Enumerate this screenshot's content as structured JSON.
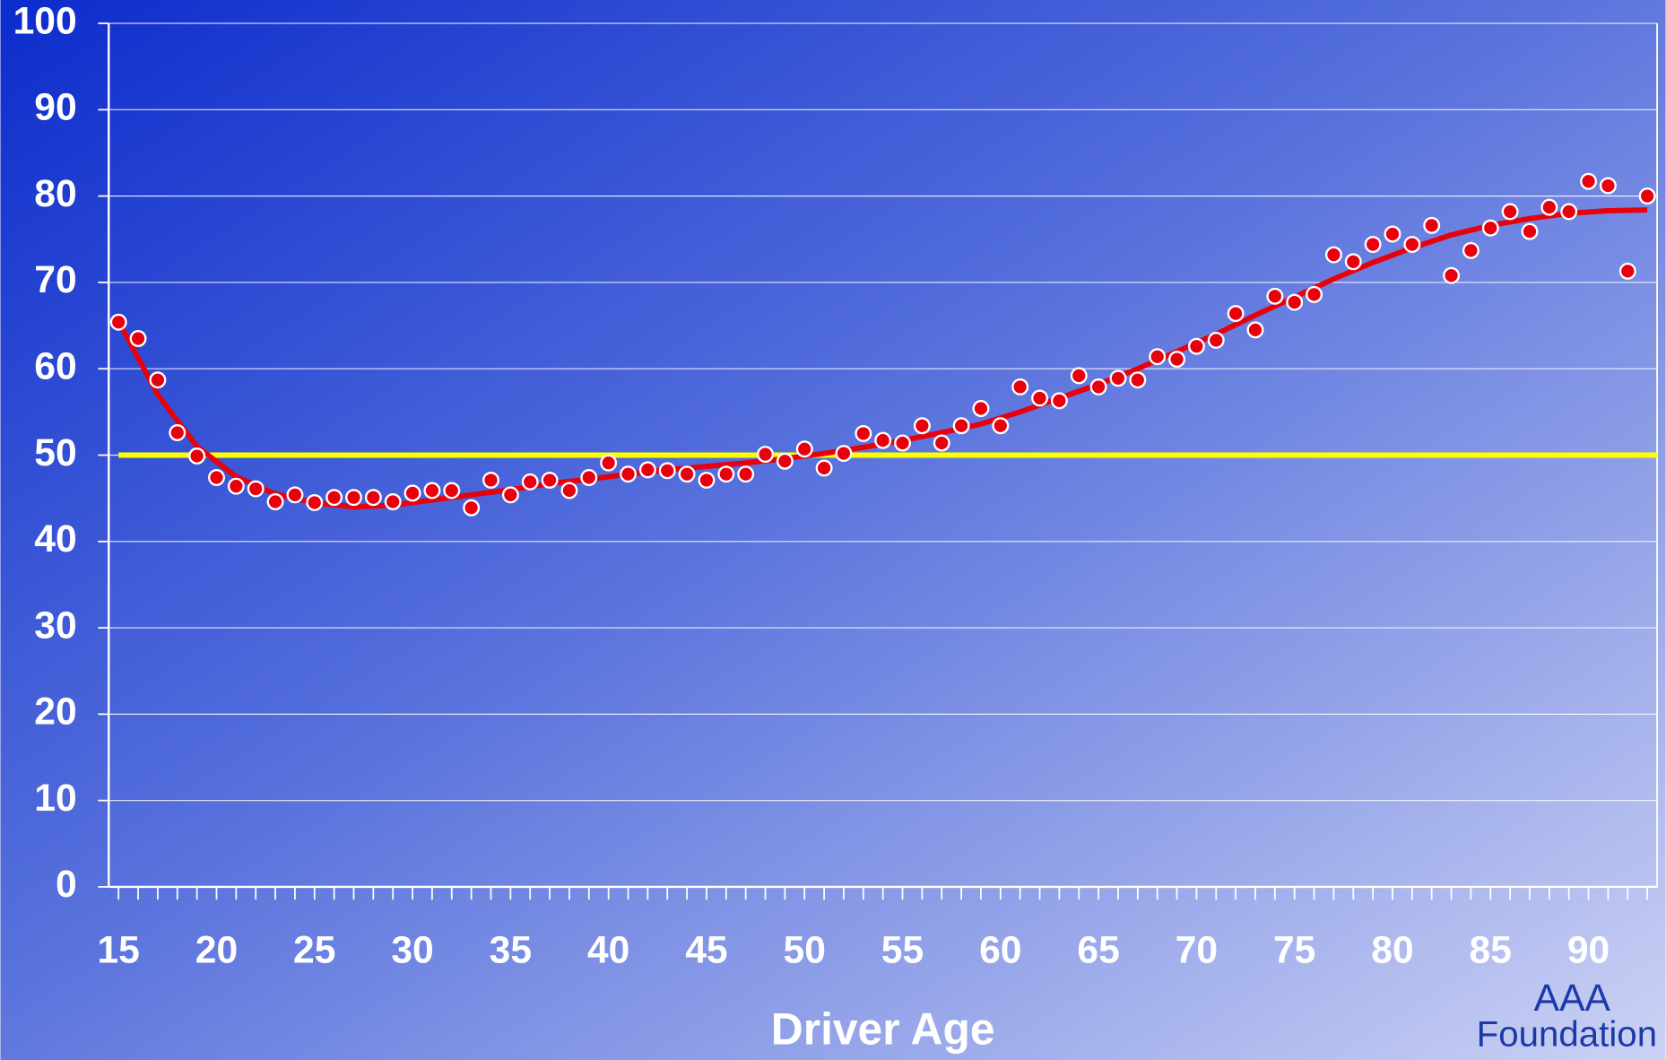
{
  "chart_data": {
    "type": "scatter",
    "x_label": "Driver Age",
    "logo": [
      "AAA",
      "Foundation"
    ],
    "xlim": [
      14.5,
      93.5
    ],
    "ylim": [
      0,
      100
    ],
    "xticks": [
      15,
      20,
      25,
      30,
      35,
      40,
      45,
      50,
      55,
      60,
      65,
      70,
      75,
      80,
      85,
      90
    ],
    "xminorticks": [
      15,
      16,
      17,
      18,
      19,
      20,
      21,
      22,
      23,
      24,
      25,
      26,
      27,
      28,
      29,
      30,
      31,
      32,
      33,
      34,
      35,
      36,
      37,
      38,
      39,
      40,
      41,
      42,
      43,
      44,
      45,
      46,
      47,
      48,
      49,
      50,
      51,
      52,
      53,
      54,
      55,
      56,
      57,
      58,
      59,
      60,
      61,
      62,
      63,
      64,
      65,
      66,
      67,
      68,
      69,
      70,
      71,
      72,
      73,
      74,
      75,
      76,
      77,
      78,
      79,
      80,
      81,
      82,
      83,
      84,
      85,
      86,
      87,
      88,
      89,
      90,
      91,
      92,
      93
    ],
    "yticks": [
      0,
      10,
      20,
      30,
      40,
      50,
      60,
      70,
      80,
      90,
      100
    ],
    "grid": true,
    "reference_line": {
      "value": 50,
      "color": "#ffff00",
      "x": [
        15,
        93.5
      ]
    },
    "points": {
      "color": "#e8000c",
      "x": [
        15,
        16,
        17,
        18,
        19,
        20,
        21,
        22,
        23,
        24,
        25,
        26,
        27,
        28,
        29,
        30,
        31,
        32,
        33,
        34,
        35,
        36,
        37,
        38,
        39,
        40,
        41,
        42,
        43,
        44,
        45,
        46,
        47,
        48,
        49,
        50,
        51,
        52,
        53,
        54,
        55,
        56,
        57,
        58,
        59,
        60,
        61,
        62,
        63,
        64,
        65,
        66,
        67,
        68,
        69,
        70,
        71,
        72,
        73,
        74,
        75,
        76,
        77,
        78,
        79,
        80,
        81,
        82,
        83,
        84,
        85,
        86,
        87,
        88,
        89,
        90,
        91,
        92,
        93
      ],
      "values": [
        65.4,
        63.5,
        58.7,
        52.6,
        49.9,
        47.4,
        46.4,
        46.1,
        44.6,
        45.4,
        44.5,
        45.1,
        45.1,
        45.1,
        44.6,
        45.6,
        45.9,
        45.9,
        43.9,
        47.1,
        45.4,
        46.9,
        47.1,
        45.9,
        47.4,
        49.1,
        47.8,
        48.3,
        48.2,
        47.8,
        47.1,
        47.8,
        47.8,
        50.1,
        49.3,
        50.7,
        48.5,
        50.2,
        52.5,
        51.7,
        51.4,
        53.4,
        51.4,
        53.4,
        55.4,
        53.4,
        57.9,
        56.6,
        56.3,
        59.2,
        57.9,
        58.9,
        58.7,
        61.4,
        61.1,
        62.6,
        63.3,
        66.4,
        64.5,
        68.4,
        67.7,
        68.6,
        73.2,
        72.4,
        74.4,
        75.6,
        74.4,
        76.6,
        70.8,
        73.7,
        76.3,
        78.2,
        75.9,
        78.7,
        78.2,
        81.7,
        81.2,
        71.3,
        80.0
      ]
    },
    "fit": {
      "color": "#e8000c",
      "x": [
        15,
        17,
        19,
        21,
        23,
        25,
        27,
        29,
        31,
        33,
        35,
        37,
        39,
        41,
        43,
        45,
        47,
        49,
        51,
        53,
        55,
        57,
        59,
        61,
        63,
        65,
        67,
        69,
        71,
        73,
        75,
        77,
        79,
        81,
        83,
        85,
        87,
        89,
        91,
        93
      ],
      "values": [
        65.5,
        57,
        51,
        47.5,
        45.5,
        44.5,
        44,
        44.2,
        44.8,
        45.4,
        46,
        46.7,
        47.2,
        47.8,
        48.3,
        48.7,
        49.1,
        49.6,
        50.2,
        50.9,
        51.7,
        52.6,
        53.6,
        55,
        56.6,
        58.2,
        60,
        62,
        64,
        66.2,
        68.3,
        70.4,
        72.3,
        74,
        75.5,
        76.6,
        77.4,
        78,
        78.3,
        78.4
      ]
    }
  }
}
